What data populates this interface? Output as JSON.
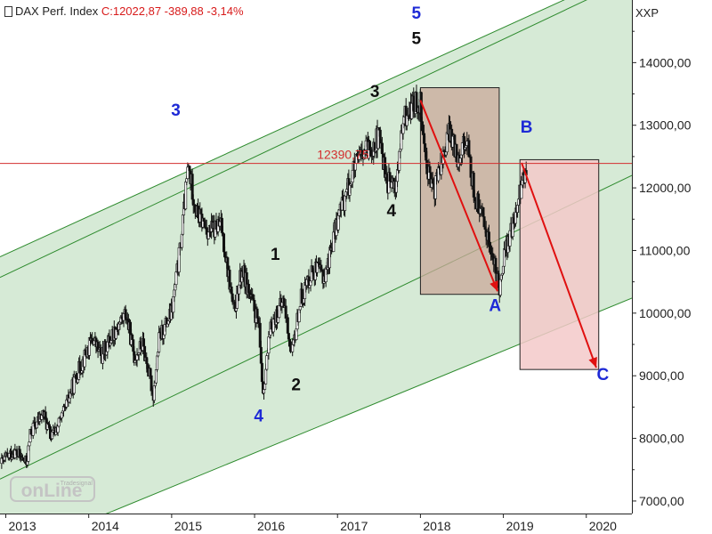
{
  "header": {
    "title": "DAX Perf. Index",
    "change": "C:12022,87 -389,88 -3,14%",
    "axis_unit": "XXP"
  },
  "watermark": "onLine Tradesignal",
  "colors": {
    "background": "#ffffff",
    "channel_fill": "#d6ead6",
    "channel_line": "#2e8b2e",
    "candle": "#111111",
    "reference_line": "#d32f2f",
    "arrow": "#e01010",
    "box_fill": "#c9a89a",
    "box2_fill": "#f3c9c9",
    "wave_blue": "#1e2ad6",
    "wave_black": "#111111"
  },
  "chart_data": {
    "type": "candlestick",
    "x_labels": [
      "2013",
      "2014",
      "2015",
      "2016",
      "2017",
      "2018",
      "2019",
      "2020"
    ],
    "y_ticks": [
      "7000,00",
      "8000,00",
      "9000,00",
      "10000,00",
      "11000,00",
      "12000,00",
      "13000,00",
      "14000,00"
    ],
    "ylim": [
      6800,
      15000
    ],
    "xlim": [
      2012.93,
      2020.55
    ],
    "reference_line": {
      "value": 12390.75,
      "label": "12390,75"
    },
    "price_path": [
      [
        2012.95,
        7600
      ],
      [
        2013.1,
        7800
      ],
      [
        2013.25,
        7600
      ],
      [
        2013.3,
        8100
      ],
      [
        2013.45,
        8400
      ],
      [
        2013.55,
        8000
      ],
      [
        2013.7,
        8400
      ],
      [
        2013.85,
        9000
      ],
      [
        2014.05,
        9600
      ],
      [
        2014.15,
        9300
      ],
      [
        2014.3,
        9700
      ],
      [
        2014.45,
        10000
      ],
      [
        2014.55,
        9300
      ],
      [
        2014.65,
        9500
      ],
      [
        2014.78,
        8700
      ],
      [
        2014.85,
        9600
      ],
      [
        2015.0,
        10000
      ],
      [
        2015.1,
        11000
      ],
      [
        2015.2,
        12350
      ],
      [
        2015.3,
        11600
      ],
      [
        2015.45,
        11300
      ],
      [
        2015.6,
        11400
      ],
      [
        2015.75,
        10000
      ],
      [
        2015.85,
        10700
      ],
      [
        2016.05,
        9800
      ],
      [
        2016.1,
        8750
      ],
      [
        2016.2,
        9800
      ],
      [
        2016.35,
        10200
      ],
      [
        2016.45,
        9300
      ],
      [
        2016.55,
        10200
      ],
      [
        2016.7,
        10700
      ],
      [
        2016.85,
        10600
      ],
      [
        2017.0,
        11500
      ],
      [
        2017.2,
        12300
      ],
      [
        2017.35,
        12600
      ],
      [
        2017.5,
        12800
      ],
      [
        2017.6,
        12100
      ],
      [
        2017.7,
        12000
      ],
      [
        2017.8,
        13100
      ],
      [
        2017.9,
        13300
      ],
      [
        2018.0,
        13400
      ],
      [
        2018.05,
        12600
      ],
      [
        2018.15,
        11900
      ],
      [
        2018.25,
        12400
      ],
      [
        2018.35,
        12900
      ],
      [
        2018.45,
        12500
      ],
      [
        2018.55,
        12800
      ],
      [
        2018.65,
        11900
      ],
      [
        2018.8,
        11300
      ],
      [
        2018.95,
        10400
      ],
      [
        2019.0,
        10900
      ],
      [
        2019.1,
        11300
      ],
      [
        2019.2,
        11900
      ],
      [
        2019.28,
        12390
      ]
    ],
    "channel": [
      {
        "name": "lower",
        "points": [
          [
            2012.93,
            6100
          ],
          [
            2020.55,
            10240
          ]
        ]
      },
      {
        "name": "inner-lower",
        "points": [
          [
            2012.93,
            7350
          ],
          [
            2020.55,
            12200
          ]
        ]
      },
      {
        "name": "inner-upper",
        "points": [
          [
            2012.93,
            10570
          ],
          [
            2020.0,
            15000
          ]
        ]
      },
      {
        "name": "upper",
        "points": [
          [
            2012.93,
            10900
          ],
          [
            2019.73,
            15000
          ]
        ]
      }
    ],
    "boxes": [
      {
        "x": [
          2018.0,
          2018.95
        ],
        "y": [
          10300,
          13600
        ]
      },
      {
        "x": [
          2019.2,
          2020.15
        ],
        "y": [
          9100,
          12450
        ]
      }
    ],
    "arrows": [
      {
        "from": [
          2018.0,
          13400
        ],
        "to": [
          2018.93,
          10350
        ]
      },
      {
        "from": [
          2019.22,
          12400
        ],
        "to": [
          2020.12,
          9130
        ]
      }
    ],
    "wave_labels": [
      {
        "text": "3",
        "x": 2015.05,
        "y": 13150,
        "color": "blue"
      },
      {
        "text": "4",
        "x": 2016.05,
        "y": 8270,
        "color": "blue"
      },
      {
        "text": "5",
        "x": 2017.95,
        "y": 14700,
        "color": "blue"
      },
      {
        "text": "1",
        "x": 2016.25,
        "y": 10850,
        "color": "black"
      },
      {
        "text": "2",
        "x": 2016.5,
        "y": 8770,
        "color": "black"
      },
      {
        "text": "3",
        "x": 2017.45,
        "y": 13450,
        "color": "black"
      },
      {
        "text": "4",
        "x": 2017.65,
        "y": 11550,
        "color": "black"
      },
      {
        "text": "5",
        "x": 2017.95,
        "y": 14300,
        "color": "black"
      },
      {
        "text": "A",
        "x": 2018.9,
        "y": 10030,
        "color": "blue"
      },
      {
        "text": "B",
        "x": 2019.28,
        "y": 12880,
        "color": "blue"
      },
      {
        "text": "C",
        "x": 2020.2,
        "y": 8930,
        "color": "blue"
      }
    ]
  }
}
